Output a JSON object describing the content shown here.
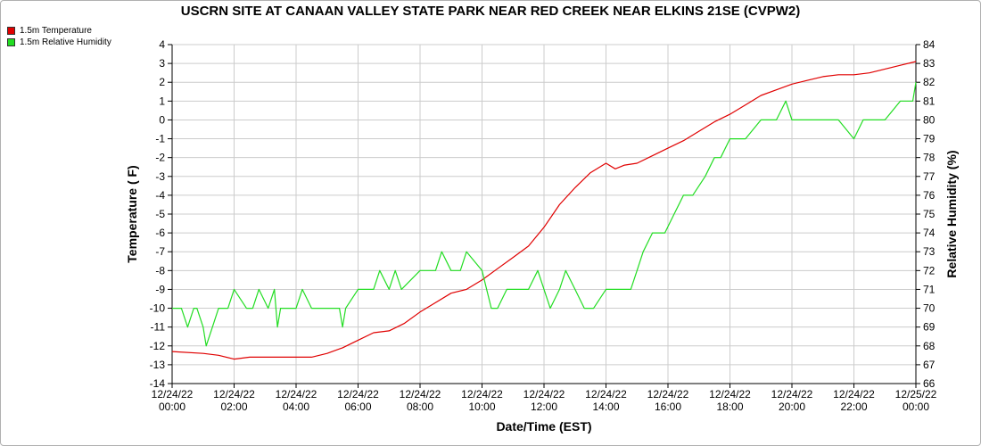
{
  "chart_data": {
    "type": "line",
    "title": "USCRN SITE AT CANAAN VALLEY STATE PARK NEAR RED CREEK NEAR ELKINS 21SE (CVPW2)",
    "xlabel": "Date/Time (EST)",
    "ylabel_left": "Temperature ( F)",
    "ylabel_right": "Relative Humidity (%)",
    "ylim_left": [
      -14,
      4
    ],
    "ylim_right": [
      66,
      84
    ],
    "xlim_hours": [
      0,
      24
    ],
    "x_tick_labels": [
      [
        "12/24/22",
        "00:00"
      ],
      [
        "12/24/22",
        "02:00"
      ],
      [
        "12/24/22",
        "04:00"
      ],
      [
        "12/24/22",
        "06:00"
      ],
      [
        "12/24/22",
        "08:00"
      ],
      [
        "12/24/22",
        "10:00"
      ],
      [
        "12/24/22",
        "12:00"
      ],
      [
        "12/24/22",
        "14:00"
      ],
      [
        "12/24/22",
        "16:00"
      ],
      [
        "12/24/22",
        "18:00"
      ],
      [
        "12/24/22",
        "20:00"
      ],
      [
        "12/24/22",
        "22:00"
      ],
      [
        "12/25/22",
        "00:00"
      ]
    ],
    "y_left_ticks": [
      "4",
      "3",
      "2",
      "1",
      "0",
      "-1",
      "-2",
      "-3",
      "-4",
      "-5",
      "-6",
      "-7",
      "-8",
      "-9",
      "-10",
      "-11",
      "-12",
      "-13",
      "-14"
    ],
    "y_right_ticks": [
      "84",
      "83",
      "82",
      "81",
      "80",
      "79",
      "78",
      "77",
      "76",
      "75",
      "74",
      "73",
      "72",
      "71",
      "70",
      "69",
      "68",
      "67",
      "66"
    ],
    "grid": true,
    "legend_position": "top-left",
    "series": [
      {
        "name": "1.5m Temperature",
        "color": "#e00000",
        "axis": "left",
        "x": [
          0,
          1,
          1.5,
          2,
          2.5,
          3,
          4,
          4.5,
          5,
          5.5,
          6,
          6.5,
          7,
          7.5,
          8,
          8.5,
          9,
          9.5,
          10,
          10.5,
          11,
          11.5,
          12,
          12.5,
          13,
          13.5,
          14,
          14.3,
          14.6,
          15,
          15.5,
          16,
          16.5,
          17,
          17.5,
          18,
          18.5,
          19,
          19.5,
          20,
          20.5,
          21,
          21.5,
          22,
          22.5,
          23,
          23.5,
          24
        ],
        "y": [
          -12.3,
          -12.4,
          -12.5,
          -12.7,
          -12.6,
          -12.6,
          -12.6,
          -12.6,
          -12.4,
          -12.1,
          -11.7,
          -11.3,
          -11.2,
          -10.8,
          -10.2,
          -9.7,
          -9.2,
          -9.0,
          -8.5,
          -7.9,
          -7.3,
          -6.7,
          -5.7,
          -4.5,
          -3.6,
          -2.8,
          -2.3,
          -2.6,
          -2.4,
          -2.3,
          -1.9,
          -1.5,
          -1.1,
          -0.6,
          -0.1,
          0.3,
          0.8,
          1.3,
          1.6,
          1.9,
          2.1,
          2.3,
          2.4,
          2.4,
          2.5,
          2.7,
          2.9,
          3.1
        ]
      },
      {
        "name": "1.5m Relative Humidity",
        "color": "#22dd22",
        "axis": "right",
        "x": [
          0,
          0.3,
          0.5,
          0.7,
          0.8,
          1.0,
          1.1,
          1.3,
          1.5,
          1.6,
          1.8,
          2.0,
          2.4,
          2.6,
          2.8,
          3.1,
          3.3,
          3.4,
          3.5,
          3.7,
          4.0,
          4.2,
          4.5,
          5.0,
          5.2,
          5.4,
          5.5,
          5.6,
          6.0,
          6.5,
          6.7,
          7.0,
          7.2,
          7.4,
          8.0,
          8.5,
          8.7,
          9.0,
          9.3,
          9.5,
          10.0,
          10.3,
          10.5,
          10.8,
          11.0,
          11.5,
          11.8,
          12.2,
          12.5,
          12.7,
          13.0,
          13.3,
          13.6,
          14.0,
          14.5,
          14.8,
          15.0,
          15.2,
          15.5,
          15.9,
          16.2,
          16.5,
          16.8,
          17.2,
          17.5,
          17.7,
          18.0,
          18.5,
          19.0,
          19.5,
          19.8,
          20.0,
          20.2,
          20.5,
          21.0,
          21.5,
          22.0,
          22.3,
          22.5,
          23.0,
          23.5,
          23.9,
          24.0
        ],
        "y": [
          70,
          70,
          69,
          70,
          70,
          69,
          68,
          69,
          70,
          70,
          70,
          71,
          70,
          70,
          71,
          70,
          71,
          69,
          70,
          70,
          70,
          71,
          70,
          70,
          70,
          70,
          69,
          70,
          71,
          71,
          72,
          71,
          72,
          71,
          72,
          72,
          73,
          72,
          72,
          73,
          72,
          70,
          70,
          71,
          71,
          71,
          72,
          70,
          71,
          72,
          71,
          70,
          70,
          71,
          71,
          71,
          72,
          73,
          74,
          74,
          75,
          76,
          76,
          77,
          78,
          78,
          79,
          79,
          80,
          80,
          81,
          80,
          80,
          80,
          80,
          80,
          79,
          80,
          80,
          80,
          81,
          81,
          82
        ]
      }
    ]
  }
}
